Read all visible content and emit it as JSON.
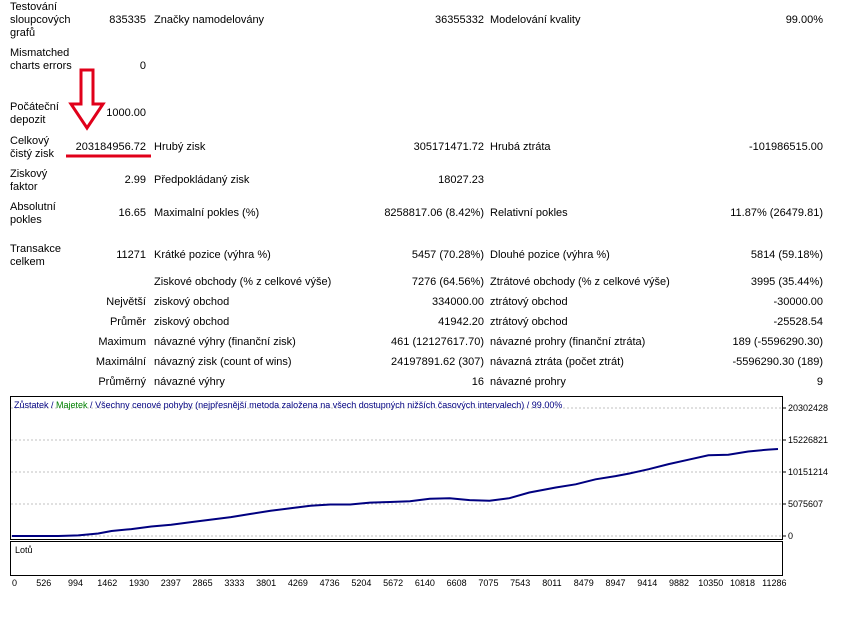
{
  "report": {
    "bars_tested": {
      "label": "Testování sloupcových grafů",
      "value": "835335"
    },
    "ticks_modelled": {
      "label": "Značky namodelovány",
      "value": "36355332"
    },
    "model_quality": {
      "label": "Modelování kvality",
      "value": "99.00%"
    },
    "mismatched": {
      "label": "Mismatched charts errors",
      "value": "0"
    },
    "initial_deposit": {
      "label": "Počáteční depozit",
      "value": "1000.00"
    },
    "total_net_profit": {
      "label": "Celkový čistý zisk",
      "value": "203184956.72"
    },
    "gross_profit": {
      "label": "Hrubý zisk",
      "value": "305171471.72"
    },
    "gross_loss": {
      "label": "Hrubá ztráta",
      "value": "-101986515.00"
    },
    "profit_factor": {
      "label": "Ziskový faktor",
      "value": "2.99"
    },
    "expected_payoff": {
      "label": "Předpokládaný zisk",
      "value": "18027.23"
    },
    "absolute_drawdown": {
      "label": "Absolutní pokles",
      "value": "16.65"
    },
    "maximal_drawdown": {
      "label": "Maximalní pokles (%)",
      "value": "8258817.06 (8.42%)"
    },
    "relative_drawdown": {
      "label": "Relativní pokles",
      "value": "11.87% (26479.81)"
    },
    "total_trades": {
      "label": "Transakce celkem",
      "value": "11271"
    },
    "short_positions": {
      "label": "Krátké pozice (výhra %)",
      "value": "5457 (70.28%)"
    },
    "long_positions": {
      "label": "Dlouhé pozice (výhra %)",
      "value": "5814 (59.18%)"
    },
    "profit_trades": {
      "label": "Ziskové obchody (% z celkové výše)",
      "value": "7276 (64.56%)"
    },
    "loss_trades": {
      "label": "Ztrátové obchody (% z celkové výše)",
      "value": "3995 (35.44%)"
    },
    "largest": {
      "prefix": "Největší",
      "profit_label": "ziskový obchod",
      "profit_value": "334000.00",
      "loss_label": "ztrátový obchod",
      "loss_value": "-30000.00"
    },
    "average": {
      "prefix": "Průměr",
      "profit_label": "ziskový obchod",
      "profit_value": "41942.20",
      "loss_label": "ztrátový obchod",
      "loss_value": "-25528.54"
    },
    "maximum": {
      "prefix": "Maximum",
      "wins_label": "návazné výhry (finanční zisk)",
      "wins_value": "461 (12127617.70)",
      "losses_label": "návazné prohry (finanční ztráta)",
      "losses_value": "189 (-5596290.30)"
    },
    "maximal": {
      "prefix": "Maximální",
      "wins_label": "návazný zisk (count of wins)",
      "wins_value": "24197891.62 (307)",
      "losses_label": "návazná ztráta (počet ztrát)",
      "losses_value": "-5596290.30 (189)"
    },
    "avg_consecutive": {
      "prefix": "Průměrný",
      "wins_label": "návazné výhry",
      "wins_value": "16",
      "losses_label": "návazné prohry",
      "losses_value": "9"
    }
  },
  "legend": {
    "balance": "Zůstatek",
    "sep1": " / ",
    "equity": "Majetek",
    "sep2": " / ",
    "description": "Všechny cenové pohyby (nejpřesnější metoda založena na všech dostupných nižších časových intervalech) / 99.00%"
  },
  "lots_label": "Lotů",
  "colors": {
    "balance": "#000080",
    "equity": "#008000",
    "arrow": "#e0001a",
    "grid": "#c0c0c0"
  },
  "chart_data": {
    "type": "line",
    "y_ticks": [
      "20302428",
      "15226821",
      "10151214",
      "5075607",
      "0"
    ],
    "ylim": [
      0,
      20302428
    ],
    "x_ticks": [
      "0",
      "526",
      "994",
      "1462",
      "1930",
      "2397",
      "2865",
      "3333",
      "3801",
      "4269",
      "4736",
      "5204",
      "5672",
      "6140",
      "6608",
      "7075",
      "7543",
      "8011",
      "8479",
      "8947",
      "9414",
      "9882",
      "10350",
      "10818",
      "11286"
    ],
    "xlim": [
      0,
      11550
    ],
    "series": [
      {
        "values_x": [
          0,
          300,
          700,
          1000,
          1300,
          1500,
          1800,
          2100,
          2400,
          2700,
          3000,
          3300,
          3600,
          3900,
          4200,
          4500,
          4800,
          5100,
          5400,
          5700,
          6000,
          6300,
          6600,
          6900,
          7200,
          7500,
          7800,
          8000,
          8200,
          8500,
          8800,
          9100,
          9300,
          9600,
          9900,
          10200,
          10500,
          10800,
          11100,
          11400,
          11550
        ],
        "values_y": [
          0,
          0,
          0,
          100000,
          400000,
          800000,
          1100000,
          1500000,
          1800000,
          2200000,
          2600000,
          3000000,
          3500000,
          4000000,
          4400000,
          4800000,
          5000000,
          5000000,
          5300000,
          5400000,
          5500000,
          5900000,
          6000000,
          5700000,
          5600000,
          6000000,
          6900000,
          7300000,
          7700000,
          8200000,
          9000000,
          9500000,
          9900000,
          10600000,
          11400000,
          12100000,
          12800000,
          12900000,
          13400000,
          13700000,
          13800000
        ]
      }
    ]
  }
}
